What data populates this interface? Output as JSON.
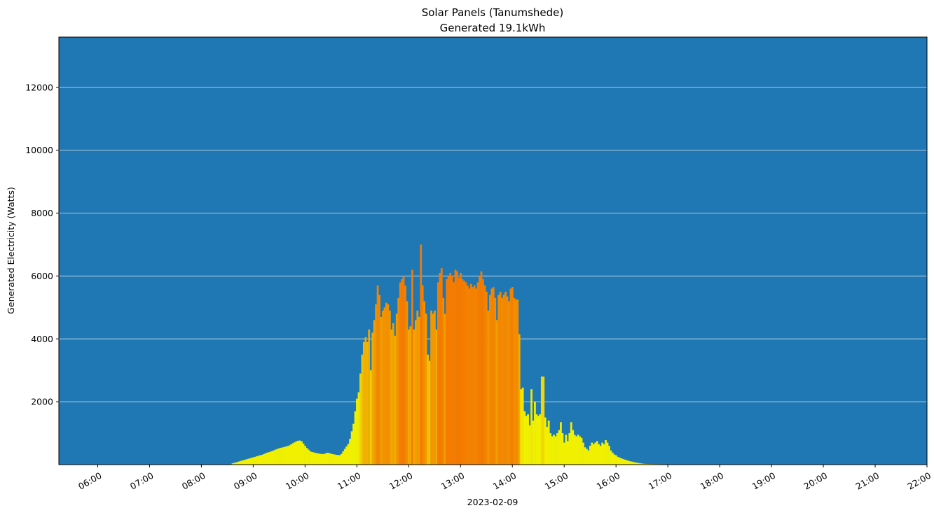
{
  "chart_data": {
    "type": "bar",
    "title_lines": [
      "Solar Panels (Tanumshede)",
      "Generated 19.1kWh"
    ],
    "xlabel": "2023-02-09",
    "ylabel": "Generated Electricity (Watts)",
    "x_ticks": [
      "06:00",
      "07:00",
      "08:00",
      "09:00",
      "10:00",
      "11:00",
      "12:00",
      "13:00",
      "14:00",
      "15:00",
      "16:00",
      "17:00",
      "18:00",
      "19:00",
      "20:00",
      "21:00",
      "22:00"
    ],
    "y_ticks": [
      2000,
      4000,
      6000,
      8000,
      10000,
      12000
    ],
    "xlim": [
      "05:15",
      "22:00"
    ],
    "ylim": [
      0,
      13600
    ],
    "grid": "horizontal",
    "colors": {
      "plot_background": "#1f77b4",
      "grid": "#ffffff",
      "low": "#f0f000",
      "mid": "#f0b400",
      "high": "#f47a00"
    },
    "bar_interval_minutes": 2,
    "points": [
      [
        "08:35",
        40
      ],
      [
        "08:40",
        80
      ],
      [
        "08:45",
        120
      ],
      [
        "08:50",
        160
      ],
      [
        "08:55",
        200
      ],
      [
        "09:00",
        240
      ],
      [
        "09:05",
        280
      ],
      [
        "09:10",
        320
      ],
      [
        "09:15",
        380
      ],
      [
        "09:20",
        420
      ],
      [
        "09:25",
        480
      ],
      [
        "09:30",
        530
      ],
      [
        "09:35",
        560
      ],
      [
        "09:40",
        600
      ],
      [
        "09:45",
        680
      ],
      [
        "09:50",
        760
      ],
      [
        "09:52",
        780
      ],
      [
        "09:55",
        740
      ],
      [
        "10:00",
        560
      ],
      [
        "10:05",
        420
      ],
      [
        "10:10",
        380
      ],
      [
        "10:15",
        350
      ],
      [
        "10:20",
        330
      ],
      [
        "10:25",
        380
      ],
      [
        "10:30",
        340
      ],
      [
        "10:35",
        310
      ],
      [
        "10:40",
        300
      ],
      [
        "10:45",
        500
      ],
      [
        "10:50",
        700
      ],
      [
        "10:55",
        1300
      ],
      [
        "11:00",
        2300
      ],
      [
        "11:02",
        2900
      ],
      [
        "11:04",
        3500
      ],
      [
        "11:06",
        3900
      ],
      [
        "11:08",
        4050
      ],
      [
        "11:10",
        3900
      ],
      [
        "11:12",
        4300
      ],
      [
        "11:14",
        3000
      ],
      [
        "11:16",
        4200
      ],
      [
        "11:18",
        4600
      ],
      [
        "11:20",
        5100
      ],
      [
        "11:22",
        5700
      ],
      [
        "11:24",
        5400
      ],
      [
        "11:26",
        4700
      ],
      [
        "11:28",
        4900
      ],
      [
        "11:30",
        5000
      ],
      [
        "11:32",
        5150
      ],
      [
        "11:34",
        5100
      ],
      [
        "11:36",
        4900
      ],
      [
        "11:38",
        4300
      ],
      [
        "11:40",
        4500
      ],
      [
        "11:42",
        4100
      ],
      [
        "11:44",
        4800
      ],
      [
        "11:46",
        5300
      ],
      [
        "11:48",
        5800
      ],
      [
        "11:50",
        5900
      ],
      [
        "11:52",
        6000
      ],
      [
        "11:54",
        5700
      ],
      [
        "11:56",
        5200
      ],
      [
        "11:58",
        4300
      ],
      [
        "12:00",
        4400
      ],
      [
        "12:02",
        6200
      ],
      [
        "12:04",
        4300
      ],
      [
        "12:06",
        4600
      ],
      [
        "12:08",
        4900
      ],
      [
        "12:10",
        4700
      ],
      [
        "12:12",
        7000
      ],
      [
        "12:14",
        5700
      ],
      [
        "12:16",
        5200
      ],
      [
        "12:18",
        4800
      ],
      [
        "12:20",
        3500
      ],
      [
        "12:22",
        3300
      ],
      [
        "12:24",
        4900
      ],
      [
        "12:26",
        4800
      ],
      [
        "12:28",
        4900
      ],
      [
        "12:30",
        4300
      ],
      [
        "12:32",
        5800
      ],
      [
        "12:34",
        6100
      ],
      [
        "12:36",
        6250
      ],
      [
        "12:38",
        5300
      ],
      [
        "12:40",
        4800
      ],
      [
        "12:42",
        5900
      ],
      [
        "12:44",
        6000
      ],
      [
        "12:46",
        6100
      ],
      [
        "12:48",
        6000
      ],
      [
        "12:50",
        5800
      ],
      [
        "12:52",
        6200
      ],
      [
        "12:54",
        6150
      ],
      [
        "12:56",
        5950
      ],
      [
        "12:58",
        6100
      ],
      [
        "13:00",
        5900
      ],
      [
        "13:02",
        5850
      ],
      [
        "13:04",
        5800
      ],
      [
        "13:06",
        5700
      ],
      [
        "13:08",
        5600
      ],
      [
        "13:10",
        5750
      ],
      [
        "13:12",
        5650
      ],
      [
        "13:14",
        5700
      ],
      [
        "13:16",
        5600
      ],
      [
        "13:18",
        5800
      ],
      [
        "13:20",
        6000
      ],
      [
        "13:22",
        6150
      ],
      [
        "13:24",
        5900
      ],
      [
        "13:26",
        5700
      ],
      [
        "13:28",
        5500
      ],
      [
        "13:30",
        4900
      ],
      [
        "13:32",
        5400
      ],
      [
        "13:34",
        5600
      ],
      [
        "13:36",
        5650
      ],
      [
        "13:38",
        5300
      ],
      [
        "13:40",
        4600
      ],
      [
        "13:42",
        5400
      ],
      [
        "13:44",
        5500
      ],
      [
        "13:46",
        5300
      ],
      [
        "13:48",
        5400
      ],
      [
        "13:50",
        5500
      ],
      [
        "13:52",
        5350
      ],
      [
        "13:54",
        5200
      ],
      [
        "13:56",
        5600
      ],
      [
        "13:58",
        5650
      ],
      [
        "14:00",
        5300
      ],
      [
        "14:02",
        5250
      ],
      [
        "14:04",
        5250
      ],
      [
        "14:06",
        4150
      ],
      [
        "14:08",
        2400
      ],
      [
        "14:10",
        2450
      ],
      [
        "14:12",
        1700
      ],
      [
        "14:14",
        1550
      ],
      [
        "14:16",
        1600
      ],
      [
        "14:18",
        1250
      ],
      [
        "14:20",
        2400
      ],
      [
        "14:22",
        1400
      ],
      [
        "14:24",
        2000
      ],
      [
        "14:26",
        1600
      ],
      [
        "14:28",
        1550
      ],
      [
        "14:30",
        1600
      ],
      [
        "14:32",
        2800
      ],
      [
        "14:34",
        2800
      ],
      [
        "14:36",
        1500
      ],
      [
        "14:38",
        1200
      ],
      [
        "14:40",
        1400
      ],
      [
        "14:42",
        1000
      ],
      [
        "14:44",
        900
      ],
      [
        "14:46",
        950
      ],
      [
        "14:48",
        900
      ],
      [
        "14:50",
        1000
      ],
      [
        "14:52",
        1100
      ],
      [
        "14:54",
        1350
      ],
      [
        "14:56",
        1000
      ],
      [
        "14:58",
        700
      ],
      [
        "15:00",
        950
      ],
      [
        "15:02",
        750
      ],
      [
        "15:04",
        1000
      ],
      [
        "15:06",
        1350
      ],
      [
        "15:08",
        1100
      ],
      [
        "15:10",
        950
      ],
      [
        "15:12",
        900
      ],
      [
        "15:14",
        950
      ],
      [
        "15:16",
        900
      ],
      [
        "15:18",
        850
      ],
      [
        "15:20",
        700
      ],
      [
        "15:22",
        550
      ],
      [
        "15:24",
        500
      ],
      [
        "15:26",
        450
      ],
      [
        "15:28",
        600
      ],
      [
        "15:30",
        700
      ],
      [
        "15:32",
        650
      ],
      [
        "15:34",
        700
      ],
      [
        "15:36",
        750
      ],
      [
        "15:38",
        650
      ],
      [
        "15:40",
        600
      ],
      [
        "15:42",
        700
      ],
      [
        "15:44",
        650
      ],
      [
        "15:46",
        780
      ],
      [
        "15:48",
        700
      ],
      [
        "15:50",
        600
      ],
      [
        "15:52",
        450
      ],
      [
        "15:54",
        380
      ],
      [
        "15:56",
        320
      ],
      [
        "15:58",
        300
      ],
      [
        "16:00",
        260
      ],
      [
        "16:05",
        200
      ],
      [
        "16:10",
        150
      ],
      [
        "16:15",
        110
      ],
      [
        "16:20",
        80
      ],
      [
        "16:25",
        50
      ],
      [
        "16:30",
        30
      ],
      [
        "16:35",
        20
      ],
      [
        "16:45",
        15
      ],
      [
        "17:00",
        10
      ],
      [
        "17:15",
        5
      ],
      [
        "17:30",
        3
      ]
    ]
  }
}
